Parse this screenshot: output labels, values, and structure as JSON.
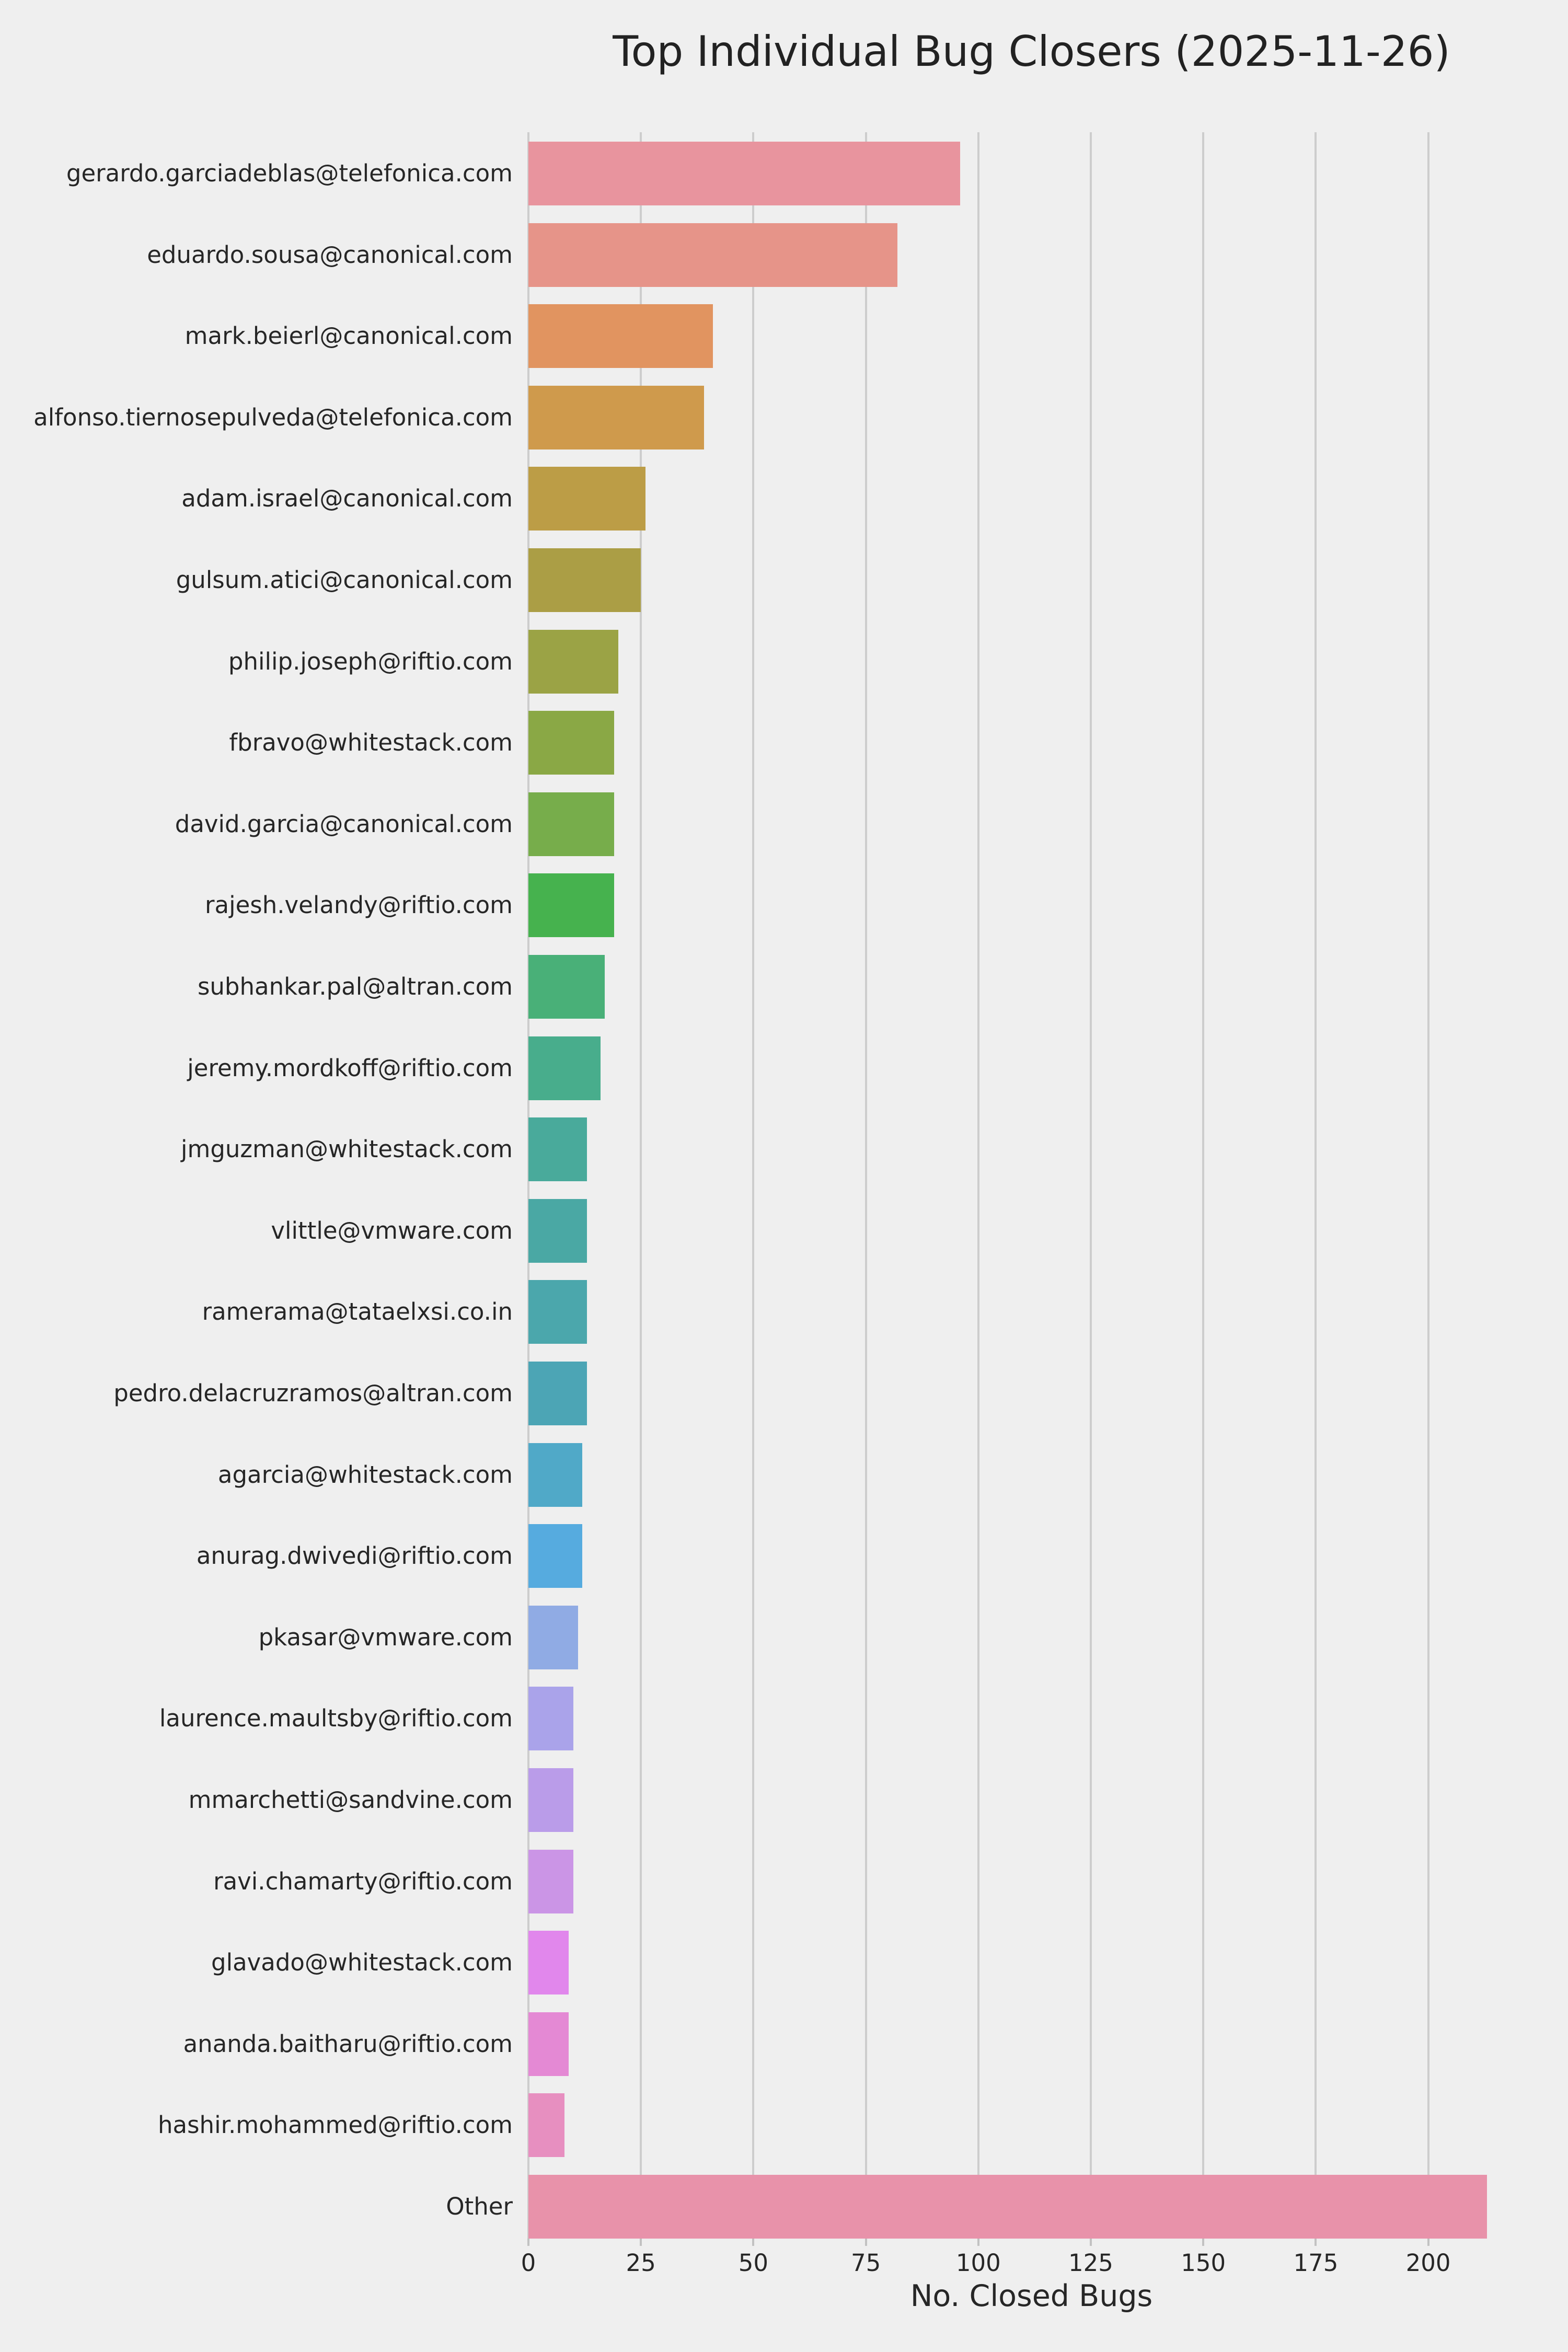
{
  "title": "Top Individual Bug Closers (2025-11-26)",
  "chart_data": {
    "type": "bar",
    "orientation": "horizontal",
    "title": "Top Individual Bug Closers (2025-11-26)",
    "xlabel": "No. Closed Bugs",
    "ylabel": "",
    "xlim": [
      0,
      224
    ],
    "xticks": [
      0,
      25,
      50,
      75,
      100,
      125,
      150,
      175,
      200
    ],
    "grid": "vertical",
    "legend": "none",
    "background_color": "#efefef",
    "gridline_color": "#cdcdcd",
    "text_color": "#262626",
    "categories": [
      "gerardo.garciadeblas@telefonica.com",
      "eduardo.sousa@canonical.com",
      "mark.beierl@canonical.com",
      "alfonso.tiernosepulveda@telefonica.com",
      "adam.israel@canonical.com",
      "gulsum.atici@canonical.com",
      "philip.joseph@riftio.com",
      "fbravo@whitestack.com",
      "david.garcia@canonical.com",
      "rajesh.velandy@riftio.com",
      "subhankar.pal@altran.com",
      "jeremy.mordkoff@riftio.com",
      "jmguzman@whitestack.com",
      "vlittle@vmware.com",
      "ramerama@tataelxsi.co.in",
      "pedro.delacruzramos@altran.com",
      "agarcia@whitestack.com",
      "anurag.dwivedi@riftio.com",
      "pkasar@vmware.com",
      "laurence.maultsby@riftio.com",
      "mmarchetti@sandvine.com",
      "ravi.chamarty@riftio.com",
      "glavado@whitestack.com",
      "ananda.baitharu@riftio.com",
      "hashir.mohammed@riftio.com",
      "Other"
    ],
    "values": [
      96,
      82,
      41,
      39,
      26,
      25,
      20,
      19,
      19,
      19,
      17,
      16,
      13,
      13,
      13,
      13,
      12,
      12,
      11,
      10,
      10,
      10,
      9,
      9,
      8,
      213
    ],
    "colors": [
      "#e8949e",
      "#e69489",
      "#e19460",
      "#cf9a4c",
      "#bc9d46",
      "#ab9e45",
      "#9ba345",
      "#8aa845",
      "#77ad4b",
      "#46b24e",
      "#49b078",
      "#48ad8c",
      "#49aa9b",
      "#4aa8a4",
      "#4ba7ac",
      "#4ca5b5",
      "#50a9c8",
      "#56abdf",
      "#90abe4",
      "#aaa3ea",
      "#ba9ce9",
      "#cb95e6",
      "#e187ec",
      "#e489d4",
      "#e78fc0",
      "#e892aa"
    ]
  }
}
